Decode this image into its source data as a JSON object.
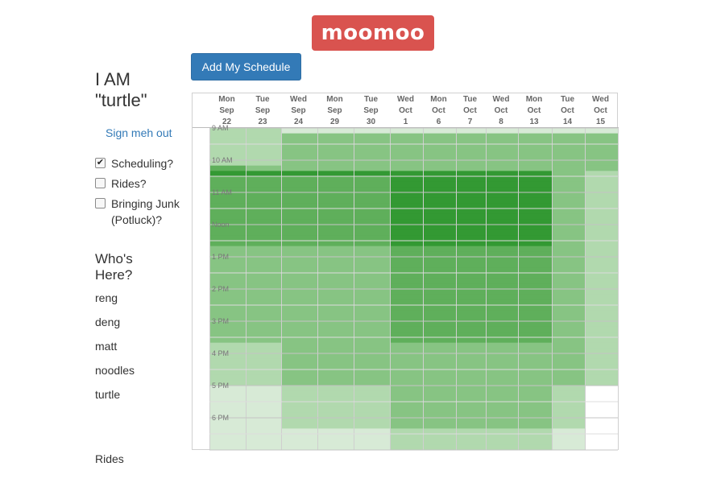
{
  "brand": {
    "title": "moomoo"
  },
  "sidebar": {
    "greeting": "I AM \"turtle\"",
    "sign_out": "Sign meh out",
    "options": [
      {
        "label": "Scheduling?",
        "checked": true
      },
      {
        "label": "Rides?",
        "checked": false
      },
      {
        "label": "Bringing Junk (Potluck)?",
        "checked": false
      }
    ],
    "whos_here_title": "Who's Here?",
    "people": [
      "reng",
      "deng",
      "matt",
      "noodles",
      "turtle"
    ],
    "rides_title": "Rides"
  },
  "toolbar": {
    "add_schedule_label": "Add My Schedule"
  },
  "schedule": {
    "days": [
      {
        "dow": "Mon",
        "month": "Sep",
        "day": "22"
      },
      {
        "dow": "Tue",
        "month": "Sep",
        "day": "23"
      },
      {
        "dow": "Wed",
        "month": "Sep",
        "day": "24"
      },
      {
        "dow": "Mon",
        "month": "Sep",
        "day": "29"
      },
      {
        "dow": "Tue",
        "month": "Sep",
        "day": "30"
      },
      {
        "dow": "Wed",
        "month": "Oct",
        "day": "1"
      },
      {
        "dow": "Mon",
        "month": "Oct",
        "day": "6"
      },
      {
        "dow": "Tue",
        "month": "Oct",
        "day": "7"
      },
      {
        "dow": "Wed",
        "month": "Oct",
        "day": "8"
      },
      {
        "dow": "Mon",
        "month": "Oct",
        "day": "13"
      },
      {
        "dow": "Tue",
        "month": "Oct",
        "day": "14"
      },
      {
        "dow": "Wed",
        "month": "Oct",
        "day": "15"
      }
    ],
    "time_labels": [
      "9 AM",
      "10 AM",
      "11 AM",
      "Noon",
      "1 PM",
      "2 PM",
      "3 PM",
      "4 PM",
      "5 PM",
      "6 PM"
    ],
    "availability_levels": [
      [
        2,
        2,
        1,
        1,
        1,
        1,
        1,
        1,
        1,
        1,
        1,
        1
      ],
      [
        2,
        2,
        3,
        3,
        3,
        3,
        3,
        3,
        3,
        3,
        3,
        3
      ],
      [
        2,
        2,
        3,
        3,
        3,
        3,
        3,
        3,
        3,
        3,
        3,
        3
      ],
      [
        2,
        2,
        3,
        3,
        3,
        3,
        3,
        3,
        3,
        3,
        3,
        3
      ],
      [
        2,
        2,
        3,
        3,
        3,
        3,
        3,
        3,
        3,
        3,
        3,
        3
      ],
      [
        2,
        2,
        3,
        3,
        3,
        3,
        3,
        3,
        3,
        3,
        3,
        3
      ],
      [
        2,
        2,
        3,
        3,
        3,
        3,
        3,
        3,
        3,
        3,
        3,
        3
      ],
      [
        4,
        3,
        3,
        3,
        3,
        3,
        3,
        3,
        3,
        3,
        3,
        3
      ],
      [
        5,
        5,
        5,
        5,
        5,
        5,
        5,
        5,
        5,
        5,
        3,
        2
      ],
      [
        4,
        4,
        4,
        4,
        4,
        5,
        5,
        5,
        5,
        5,
        3,
        2
      ],
      [
        4,
        4,
        4,
        4,
        4,
        5,
        5,
        5,
        5,
        5,
        3,
        2
      ],
      [
        4,
        4,
        4,
        4,
        4,
        5,
        5,
        5,
        5,
        5,
        3,
        2
      ],
      [
        4,
        4,
        4,
        4,
        4,
        5,
        5,
        5,
        5,
        5,
        3,
        2
      ],
      [
        4,
        4,
        4,
        4,
        4,
        5,
        5,
        5,
        5,
        5,
        3,
        2
      ],
      [
        4,
        4,
        4,
        4,
        4,
        5,
        5,
        5,
        5,
        5,
        3,
        2
      ],
      [
        4,
        4,
        4,
        4,
        4,
        5,
        5,
        5,
        5,
        5,
        3,
        2
      ],
      [
        4,
        4,
        4,
        4,
        4,
        5,
        5,
        5,
        5,
        5,
        3,
        2
      ],
      [
        4,
        4,
        4,
        4,
        4,
        5,
        5,
        5,
        5,
        5,
        3,
        2
      ],
      [
        4,
        4,
        4,
        4,
        4,
        5,
        5,
        5,
        5,
        5,
        3,
        2
      ],
      [
        4,
        4,
        4,
        4,
        4,
        5,
        5,
        5,
        5,
        5,
        3,
        2
      ],
      [
        4,
        4,
        4,
        4,
        4,
        5,
        5,
        5,
        5,
        5,
        3,
        2
      ],
      [
        4,
        4,
        4,
        4,
        4,
        5,
        5,
        5,
        5,
        5,
        3,
        2
      ],
      [
        3,
        3,
        3,
        3,
        3,
        4,
        4,
        4,
        4,
        4,
        3,
        2
      ],
      [
        3,
        3,
        3,
        3,
        3,
        4,
        4,
        4,
        4,
        4,
        3,
        2
      ],
      [
        3,
        3,
        3,
        3,
        3,
        4,
        4,
        4,
        4,
        4,
        3,
        2
      ],
      [
        3,
        3,
        3,
        3,
        3,
        4,
        4,
        4,
        4,
        4,
        3,
        2
      ],
      [
        3,
        3,
        3,
        3,
        3,
        4,
        4,
        4,
        4,
        4,
        3,
        2
      ],
      [
        3,
        3,
        3,
        3,
        3,
        4,
        4,
        4,
        4,
        4,
        3,
        2
      ],
      [
        3,
        3,
        3,
        3,
        3,
        4,
        4,
        4,
        4,
        4,
        3,
        2
      ],
      [
        3,
        3,
        3,
        3,
        3,
        4,
        4,
        4,
        4,
        4,
        3,
        2
      ],
      [
        3,
        3,
        3,
        3,
        3,
        4,
        4,
        4,
        4,
        4,
        3,
        2
      ],
      [
        3,
        3,
        3,
        3,
        3,
        4,
        4,
        4,
        4,
        4,
        3,
        2
      ],
      [
        3,
        3,
        3,
        3,
        3,
        4,
        4,
        4,
        4,
        4,
        3,
        2
      ],
      [
        3,
        3,
        3,
        3,
        3,
        4,
        4,
        4,
        4,
        4,
        3,
        2
      ],
      [
        3,
        3,
        3,
        3,
        3,
        4,
        4,
        4,
        4,
        4,
        3,
        2
      ],
      [
        3,
        3,
        3,
        3,
        3,
        4,
        4,
        4,
        4,
        4,
        3,
        2
      ],
      [
        3,
        3,
        3,
        3,
        3,
        4,
        4,
        4,
        4,
        4,
        3,
        2
      ],
      [
        3,
        3,
        3,
        3,
        3,
        4,
        4,
        4,
        4,
        4,
        3,
        2
      ],
      [
        3,
        3,
        3,
        3,
        3,
        4,
        4,
        4,
        4,
        4,
        3,
        2
      ],
      [
        3,
        3,
        3,
        3,
        3,
        4,
        4,
        4,
        4,
        4,
        3,
        2
      ],
      [
        2,
        2,
        3,
        3,
        3,
        3,
        3,
        3,
        3,
        3,
        3,
        2
      ],
      [
        2,
        2,
        3,
        3,
        3,
        3,
        3,
        3,
        3,
        3,
        3,
        2
      ],
      [
        2,
        2,
        3,
        3,
        3,
        3,
        3,
        3,
        3,
        3,
        3,
        2
      ],
      [
        2,
        2,
        3,
        3,
        3,
        3,
        3,
        3,
        3,
        3,
        3,
        2
      ],
      [
        2,
        2,
        3,
        3,
        3,
        3,
        3,
        3,
        3,
        3,
        3,
        2
      ],
      [
        2,
        2,
        3,
        3,
        3,
        3,
        3,
        3,
        3,
        3,
        3,
        2
      ],
      [
        2,
        2,
        3,
        3,
        3,
        3,
        3,
        3,
        3,
        3,
        3,
        2
      ],
      [
        2,
        2,
        3,
        3,
        3,
        3,
        3,
        3,
        3,
        3,
        3,
        2
      ],
      [
        1,
        1,
        2,
        2,
        2,
        3,
        3,
        3,
        3,
        3,
        2,
        0
      ],
      [
        1,
        1,
        2,
        2,
        2,
        3,
        3,
        3,
        3,
        3,
        2,
        0
      ],
      [
        1,
        1,
        2,
        2,
        2,
        3,
        3,
        3,
        3,
        3,
        2,
        0
      ],
      [
        1,
        1,
        2,
        2,
        2,
        3,
        3,
        3,
        3,
        3,
        2,
        0
      ],
      [
        1,
        1,
        2,
        2,
        2,
        3,
        3,
        3,
        3,
        3,
        2,
        0
      ],
      [
        1,
        1,
        2,
        2,
        2,
        3,
        3,
        3,
        3,
        3,
        2,
        0
      ],
      [
        1,
        1,
        2,
        2,
        2,
        3,
        3,
        3,
        3,
        3,
        2,
        0
      ],
      [
        1,
        1,
        2,
        2,
        2,
        3,
        3,
        3,
        3,
        3,
        2,
        0
      ],
      [
        1,
        1,
        1,
        1,
        1,
        2,
        2,
        2,
        2,
        2,
        1,
        0
      ],
      [
        1,
        1,
        1,
        1,
        1,
        2,
        2,
        2,
        2,
        2,
        1,
        0
      ],
      [
        1,
        1,
        1,
        1,
        1,
        2,
        2,
        2,
        2,
        2,
        1,
        0
      ],
      [
        1,
        1,
        1,
        1,
        1,
        2,
        2,
        2,
        2,
        2,
        1,
        0
      ]
    ],
    "level_colors": [
      "#ffffff",
      "#d7ead6",
      "#b1d9ae",
      "#87c483",
      "#5faf5b",
      "#339933"
    ],
    "grid_line_color": "#cfcfcf",
    "header_divider_color": "#bbbbbb"
  }
}
